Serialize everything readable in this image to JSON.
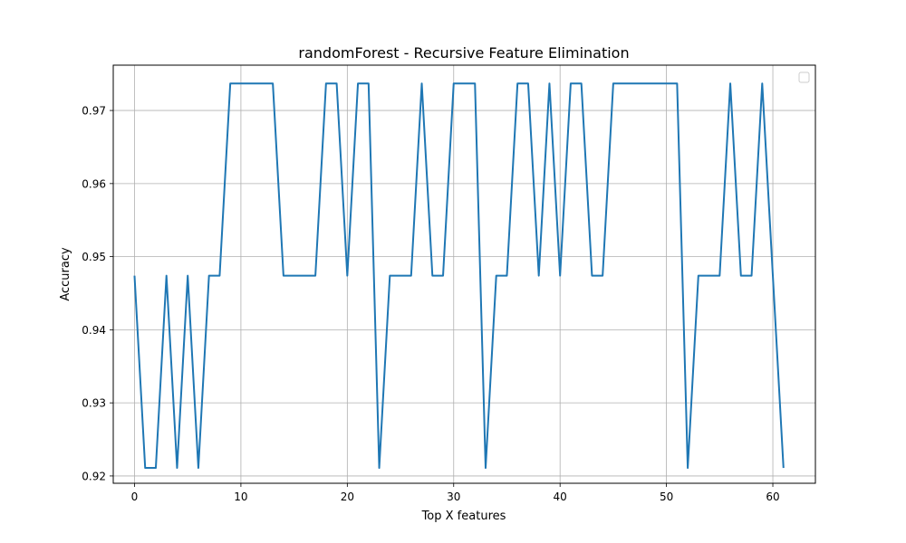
{
  "chart_data": {
    "type": "line",
    "title": "randomForest - Recursive Feature Elimination",
    "xlabel": "Top X features",
    "ylabel": "Accuracy",
    "xlim": [
      -2,
      64
    ],
    "ylim": [
      0.919,
      0.9762
    ],
    "xticks": [
      0,
      10,
      20,
      30,
      40,
      50,
      60
    ],
    "yticks": [
      0.92,
      0.93,
      0.94,
      0.95,
      0.96,
      0.97
    ],
    "ytick_labels": [
      "0.92",
      "0.93",
      "0.94",
      "0.95",
      "0.96",
      "0.97"
    ],
    "grid": true,
    "legend": {
      "placement": "top-right",
      "entries": []
    },
    "series": [
      {
        "color": "#1f77b4",
        "x": [
          0,
          1,
          2,
          3,
          4,
          5,
          6,
          7,
          8,
          9,
          10,
          11,
          12,
          13,
          14,
          15,
          16,
          17,
          18,
          19,
          20,
          21,
          22,
          23,
          24,
          25,
          26,
          27,
          28,
          29,
          30,
          31,
          32,
          33,
          34,
          35,
          36,
          37,
          38,
          39,
          40,
          41,
          42,
          43,
          44,
          45,
          46,
          47,
          48,
          49,
          50,
          51,
          52,
          53,
          54,
          55,
          56,
          57,
          58,
          59,
          60,
          61
        ],
        "values": [
          0.9474,
          0.9211,
          0.9211,
          0.9474,
          0.9211,
          0.9474,
          0.9211,
          0.9474,
          0.9474,
          0.9737,
          0.9737,
          0.9737,
          0.9737,
          0.9737,
          0.9474,
          0.9474,
          0.9474,
          0.9474,
          0.9737,
          0.9737,
          0.9474,
          0.9737,
          0.9737,
          0.9211,
          0.9474,
          0.9474,
          0.9474,
          0.9737,
          0.9474,
          0.9474,
          0.9737,
          0.9737,
          0.9737,
          0.9211,
          0.9474,
          0.9474,
          0.9737,
          0.9737,
          0.9474,
          0.9737,
          0.9474,
          0.9737,
          0.9737,
          0.9474,
          0.9474,
          0.9737,
          0.9737,
          0.9737,
          0.9737,
          0.9737,
          0.9737,
          0.9737,
          0.9211,
          0.9474,
          0.9474,
          0.9474,
          0.9737,
          0.9474,
          0.9474,
          0.9737,
          0.9474,
          0.9211
        ]
      }
    ]
  }
}
